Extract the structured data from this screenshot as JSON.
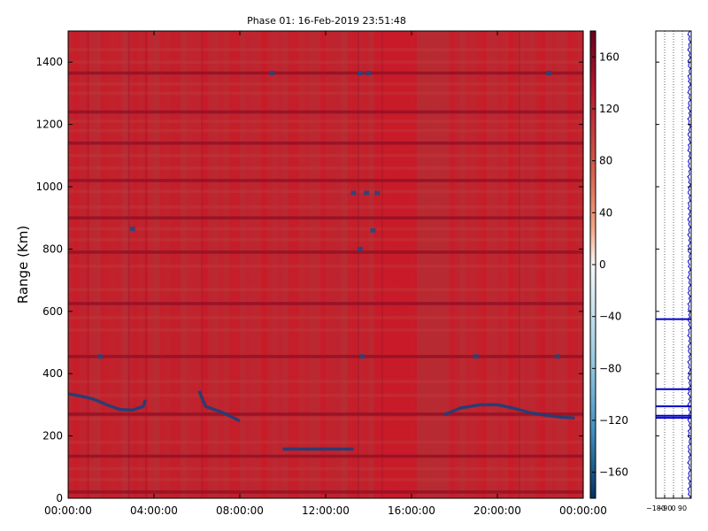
{
  "chart_data": [
    {
      "type": "heatmap",
      "title": "Phase 01: 16-Feb-2019 23:51:48",
      "xlabel": "",
      "ylabel": "Range (Km)",
      "xlim": [
        "00:00:00",
        "24:00:00"
      ],
      "ylim": [
        0,
        1500
      ],
      "x_ticks": [
        "00:00:00",
        "04:00:00",
        "08:00:00",
        "12:00:00",
        "16:00:00",
        "20:00:00",
        "00:00:00"
      ],
      "x_tick_hours": [
        0,
        4,
        8,
        12,
        16,
        20,
        24
      ],
      "y_ticks": [
        0,
        200,
        400,
        600,
        800,
        1000,
        1200,
        1400
      ],
      "colorbar": {
        "min": -180,
        "max": 180,
        "ticks": [
          160,
          120,
          80,
          40,
          0,
          -40,
          -80,
          -120,
          -160
        ],
        "tick_labels": [
          "160",
          "120",
          "80",
          "40",
          "0",
          "−40",
          "−80",
          "−120",
          "−160"
        ],
        "colormap": "RdBu diverging (blue = low, red = high)"
      },
      "background_value": 150,
      "banded_ranges_km": [
        20,
        60,
        95,
        135,
        180,
        255,
        270,
        330,
        375,
        455,
        540,
        580,
        625,
        670,
        745,
        790,
        830,
        865,
        900,
        935,
        985,
        1020,
        1060,
        1100,
        1140,
        1180,
        1210,
        1240,
        1300,
        1330,
        1365,
        1400,
        1440
      ],
      "streaks": [
        {
          "name": "streak-1",
          "points": [
            [
              0.0,
              335
            ],
            [
              0.6,
              328
            ],
            [
              1.2,
              318
            ],
            [
              1.8,
              300
            ],
            [
              2.4,
              285
            ],
            [
              3.0,
              283
            ],
            [
              3.5,
              295
            ],
            [
              3.6,
              315
            ]
          ],
          "value": -170
        },
        {
          "name": "streak-2",
          "points": [
            [
              6.1,
              345
            ],
            [
              6.4,
              295
            ],
            [
              6.8,
              285
            ],
            [
              7.2,
              275
            ],
            [
              7.6,
              262
            ],
            [
              8.0,
              248
            ]
          ],
          "value": -170
        },
        {
          "name": "streak-3",
          "points": [
            [
              10.0,
              158
            ],
            [
              10.7,
              158
            ],
            [
              11.5,
              158
            ],
            [
              12.5,
              158
            ],
            [
              13.3,
              158
            ]
          ],
          "value": -160
        },
        {
          "name": "streak-4",
          "points": [
            [
              17.5,
              268
            ],
            [
              18.3,
              290
            ],
            [
              19.2,
              300
            ],
            [
              20.0,
              300
            ],
            [
              20.7,
              290
            ],
            [
              21.5,
              275
            ],
            [
              22.3,
              266
            ],
            [
              23.0,
              260
            ],
            [
              23.6,
              258
            ]
          ],
          "value": -170
        }
      ],
      "speckles": [
        [
          13.6,
          1365
        ],
        [
          14.0,
          1365
        ],
        [
          13.3,
          980
        ],
        [
          13.6,
          800
        ],
        [
          14.2,
          860
        ],
        [
          13.7,
          455
        ],
        [
          3.0,
          865
        ],
        [
          1.5,
          455
        ],
        [
          22.4,
          1365
        ],
        [
          19.0,
          455
        ],
        [
          22.8,
          455
        ],
        [
          13.9,
          980
        ],
        [
          14.4,
          980
        ],
        [
          9.5,
          1365
        ]
      ],
      "grid": false
    },
    {
      "type": "line",
      "title": "",
      "xlabel": "",
      "ylabel": "",
      "xlim": [
        -180,
        180
      ],
      "ylim": [
        0,
        1500
      ],
      "x_ticks": [
        -180,
        -90,
        0,
        90
      ],
      "x_tick_labels": [
        "−180",
        "−90",
        "0",
        "90"
      ],
      "grid": true,
      "series": [
        {
          "color": "#0000cc",
          "marker_lines_km": [
            575,
            350,
            295,
            265,
            258
          ]
        }
      ]
    }
  ]
}
